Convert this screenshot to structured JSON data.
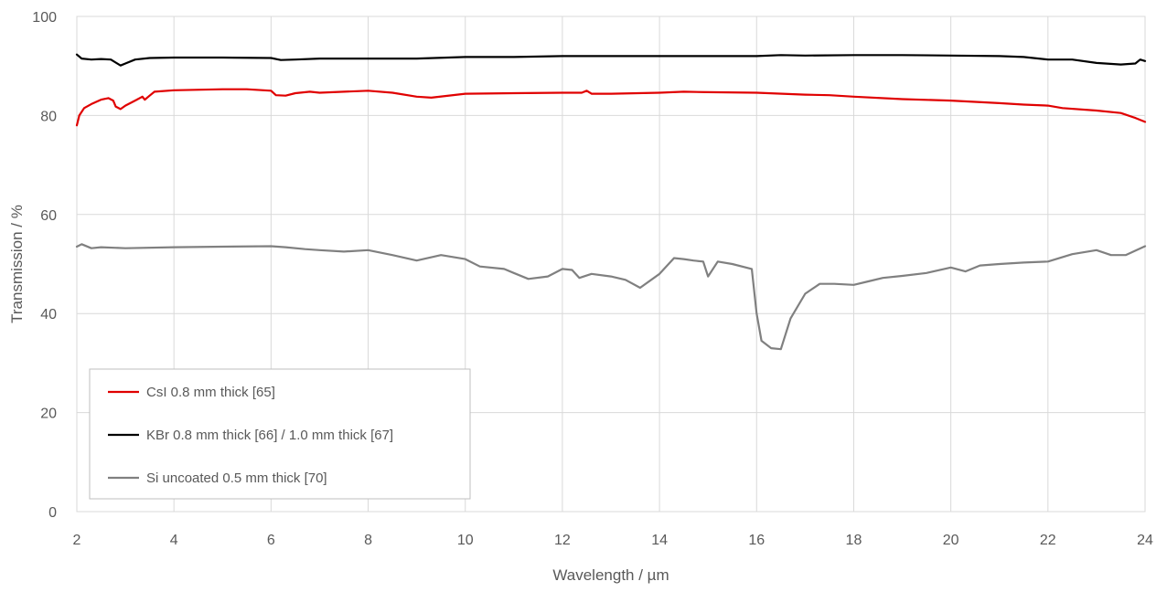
{
  "chart_data": {
    "type": "line",
    "title": "",
    "xlabel": "Wavelength / µm",
    "ylabel": "Transmission / %",
    "xlim": [
      2,
      24
    ],
    "ylim": [
      0,
      100
    ],
    "xticks": [
      2,
      4,
      6,
      8,
      10,
      12,
      14,
      16,
      18,
      20,
      22,
      24
    ],
    "yticks": [
      0,
      20,
      40,
      60,
      80,
      100
    ],
    "grid": true,
    "legend_position": "bottom-left",
    "series": [
      {
        "name": "CsI 0.8 mm thick [65]",
        "color": "#e00000",
        "points": [
          [
            2.0,
            78
          ],
          [
            2.05,
            80
          ],
          [
            2.15,
            81.5
          ],
          [
            2.3,
            82.3
          ],
          [
            2.5,
            83.2
          ],
          [
            2.65,
            83.5
          ],
          [
            2.75,
            83
          ],
          [
            2.8,
            81.8
          ],
          [
            2.9,
            81.3
          ],
          [
            3.0,
            82
          ],
          [
            3.2,
            83
          ],
          [
            3.35,
            83.8
          ],
          [
            3.4,
            83.2
          ],
          [
            3.5,
            84
          ],
          [
            3.6,
            84.8
          ],
          [
            4.0,
            85.1
          ],
          [
            5.0,
            85.3
          ],
          [
            5.5,
            85.3
          ],
          [
            6.0,
            85
          ],
          [
            6.1,
            84.1
          ],
          [
            6.3,
            84
          ],
          [
            6.5,
            84.5
          ],
          [
            6.8,
            84.8
          ],
          [
            7.0,
            84.6
          ],
          [
            7.5,
            84.8
          ],
          [
            8.0,
            85
          ],
          [
            8.5,
            84.6
          ],
          [
            9.0,
            83.8
          ],
          [
            9.3,
            83.6
          ],
          [
            10.0,
            84.4
          ],
          [
            11.0,
            84.5
          ],
          [
            12.0,
            84.6
          ],
          [
            12.4,
            84.6
          ],
          [
            12.5,
            85
          ],
          [
            12.6,
            84.4
          ],
          [
            13.0,
            84.4
          ],
          [
            14.0,
            84.6
          ],
          [
            14.5,
            84.8
          ],
          [
            15.0,
            84.7
          ],
          [
            16.0,
            84.6
          ],
          [
            17.0,
            84.2
          ],
          [
            17.5,
            84.1
          ],
          [
            18.0,
            83.8
          ],
          [
            19.0,
            83.3
          ],
          [
            20.0,
            83
          ],
          [
            21.0,
            82.5
          ],
          [
            21.5,
            82.2
          ],
          [
            22.0,
            82
          ],
          [
            22.3,
            81.5
          ],
          [
            23.0,
            81
          ],
          [
            23.5,
            80.5
          ],
          [
            23.8,
            79.5
          ],
          [
            24.0,
            78.7
          ]
        ]
      },
      {
        "name": "KBr 0.8 mm thick [66] / 1.0 mm thick [67]",
        "color": "#000000",
        "points": [
          [
            2.0,
            92.3
          ],
          [
            2.1,
            91.5
          ],
          [
            2.3,
            91.3
          ],
          [
            2.5,
            91.4
          ],
          [
            2.7,
            91.3
          ],
          [
            2.9,
            90.1
          ],
          [
            3.0,
            90.5
          ],
          [
            3.2,
            91.3
          ],
          [
            3.5,
            91.6
          ],
          [
            4.0,
            91.7
          ],
          [
            5.0,
            91.7
          ],
          [
            6.0,
            91.6
          ],
          [
            6.2,
            91.2
          ],
          [
            6.5,
            91.3
          ],
          [
            7.0,
            91.5
          ],
          [
            8.0,
            91.5
          ],
          [
            9.0,
            91.5
          ],
          [
            10.0,
            91.8
          ],
          [
            11.0,
            91.8
          ],
          [
            12.0,
            92
          ],
          [
            13.0,
            92
          ],
          [
            14.0,
            92
          ],
          [
            15.0,
            92
          ],
          [
            16.0,
            92
          ],
          [
            16.5,
            92.2
          ],
          [
            17.0,
            92.1
          ],
          [
            18.0,
            92.2
          ],
          [
            19.0,
            92.2
          ],
          [
            20.0,
            92.1
          ],
          [
            21.0,
            92
          ],
          [
            21.5,
            91.8
          ],
          [
            22.0,
            91.3
          ],
          [
            22.5,
            91.3
          ],
          [
            23.0,
            90.6
          ],
          [
            23.5,
            90.3
          ],
          [
            23.8,
            90.5
          ],
          [
            23.9,
            91.3
          ],
          [
            24.0,
            91
          ]
        ]
      },
      {
        "name": "Si uncoated 0.5 mm thick [70]",
        "color": "#808080",
        "points": [
          [
            2.0,
            53.5
          ],
          [
            2.1,
            54
          ],
          [
            2.3,
            53.2
          ],
          [
            2.5,
            53.4
          ],
          [
            3.0,
            53.2
          ],
          [
            4.0,
            53.4
          ],
          [
            5.0,
            53.5
          ],
          [
            6.0,
            53.6
          ],
          [
            6.3,
            53.4
          ],
          [
            6.7,
            53
          ],
          [
            7.0,
            52.8
          ],
          [
            7.5,
            52.5
          ],
          [
            8.0,
            52.8
          ],
          [
            8.5,
            51.8
          ],
          [
            9.0,
            50.7
          ],
          [
            9.5,
            51.8
          ],
          [
            10.0,
            51
          ],
          [
            10.3,
            49.5
          ],
          [
            10.8,
            49
          ],
          [
            11.0,
            48.2
          ],
          [
            11.3,
            47
          ],
          [
            11.7,
            47.5
          ],
          [
            12.0,
            49
          ],
          [
            12.2,
            48.8
          ],
          [
            12.35,
            47.2
          ],
          [
            12.6,
            48
          ],
          [
            13.0,
            47.5
          ],
          [
            13.3,
            46.8
          ],
          [
            13.6,
            45.2
          ],
          [
            14.0,
            48
          ],
          [
            14.3,
            51.2
          ],
          [
            14.5,
            51
          ],
          [
            14.7,
            50.7
          ],
          [
            14.9,
            50.5
          ],
          [
            15.0,
            47.5
          ],
          [
            15.2,
            50.5
          ],
          [
            15.5,
            50
          ],
          [
            15.9,
            49
          ],
          [
            16.0,
            40
          ],
          [
            16.1,
            34.5
          ],
          [
            16.3,
            33
          ],
          [
            16.5,
            32.8
          ],
          [
            16.7,
            39
          ],
          [
            17.0,
            44
          ],
          [
            17.3,
            46
          ],
          [
            17.6,
            46
          ],
          [
            18.0,
            45.8
          ],
          [
            18.3,
            46.5
          ],
          [
            18.6,
            47.2
          ],
          [
            19.0,
            47.6
          ],
          [
            19.5,
            48.2
          ],
          [
            20.0,
            49.3
          ],
          [
            20.3,
            48.5
          ],
          [
            20.6,
            49.7
          ],
          [
            21.0,
            50
          ],
          [
            21.5,
            50.3
          ],
          [
            22.0,
            50.5
          ],
          [
            22.5,
            52
          ],
          [
            23.0,
            52.8
          ],
          [
            23.3,
            51.8
          ],
          [
            23.6,
            51.8
          ],
          [
            24.0,
            53.6
          ]
        ]
      }
    ]
  }
}
